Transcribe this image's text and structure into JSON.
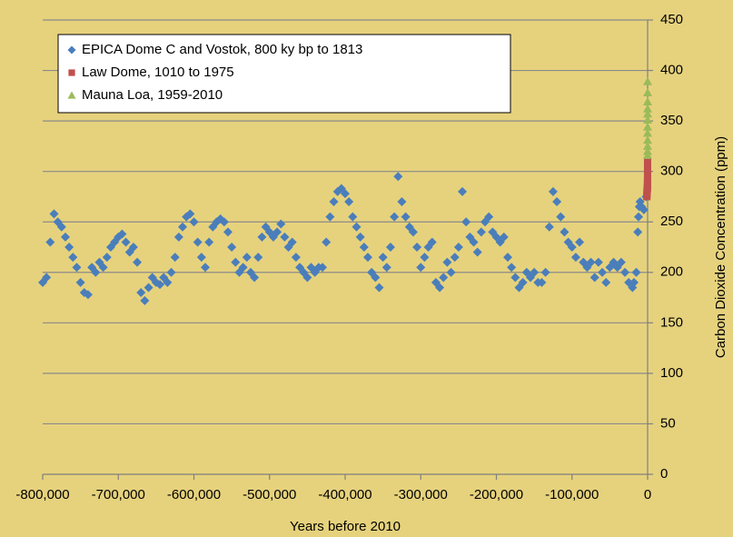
{
  "chart_data": {
    "type": "scatter",
    "x_label": "Years before 2010",
    "y_label": "Carbon Dioxide Concentration (ppm)",
    "xlim": [
      -800000,
      0
    ],
    "xticks": [
      {
        "value": -800000,
        "label": "-800,000"
      },
      {
        "value": -700000,
        "label": "-700,000"
      },
      {
        "value": -600000,
        "label": "-600,000"
      },
      {
        "value": -500000,
        "label": "-500,000"
      },
      {
        "value": -400000,
        "label": "-400,000"
      },
      {
        "value": -300000,
        "label": "-300,000"
      },
      {
        "value": -200000,
        "label": "-200,000"
      },
      {
        "value": -100000,
        "label": "-100,000"
      },
      0
    ],
    "ylim": [
      0,
      450
    ],
    "yticks": [
      0,
      50,
      100,
      150,
      200,
      250,
      300,
      350,
      400,
      450
    ],
    "grid": true,
    "legend": "top-left",
    "series": [
      {
        "name": "EPICA Dome C and Vostok, 800 ky bp to 1813",
        "color": "#4a7ebb",
        "marker": "diamond",
        "x": [
          -800000,
          -795000,
          -790000,
          -785000,
          -780000,
          -775000,
          -770000,
          -765000,
          -760000,
          -755000,
          -750000,
          -745000,
          -740000,
          -735000,
          -730000,
          -725000,
          -720000,
          -715000,
          -710000,
          -705000,
          -700000,
          -695000,
          -690000,
          -685000,
          -680000,
          -675000,
          -670000,
          -665000,
          -660000,
          -655000,
          -650000,
          -645000,
          -640000,
          -635000,
          -630000,
          -625000,
          -620000,
          -615000,
          -610000,
          -605000,
          -600000,
          -595000,
          -590000,
          -585000,
          -580000,
          -575000,
          -570000,
          -565000,
          -560000,
          -555000,
          -550000,
          -545000,
          -540000,
          -535000,
          -530000,
          -525000,
          -520000,
          -515000,
          -510000,
          -505000,
          -500000,
          -495000,
          -490000,
          -485000,
          -480000,
          -475000,
          -470000,
          -465000,
          -460000,
          -455000,
          -450000,
          -445000,
          -440000,
          -435000,
          -430000,
          -425000,
          -420000,
          -415000,
          -410000,
          -405000,
          -400000,
          -395000,
          -390000,
          -385000,
          -380000,
          -375000,
          -370000,
          -365000,
          -360000,
          -355000,
          -350000,
          -345000,
          -340000,
          -335000,
          -330000,
          -325000,
          -320000,
          -315000,
          -310000,
          -305000,
          -300000,
          -295000,
          -290000,
          -285000,
          -280000,
          -275000,
          -270000,
          -265000,
          -260000,
          -255000,
          -250000,
          -245000,
          -240000,
          -235000,
          -230000,
          -225000,
          -220000,
          -215000,
          -210000,
          -205000,
          -200000,
          -195000,
          -190000,
          -185000,
          -180000,
          -175000,
          -170000,
          -165000,
          -160000,
          -155000,
          -150000,
          -145000,
          -140000,
          -135000,
          -130000,
          -125000,
          -120000,
          -115000,
          -110000,
          -105000,
          -100000,
          -95000,
          -90000,
          -85000,
          -80000,
          -75000,
          -70000,
          -65000,
          -60000,
          -55000,
          -50000,
          -45000,
          -40000,
          -35000,
          -30000,
          -25000,
          -20000,
          -18000,
          -15000,
          -13000,
          -12000,
          -11000,
          -10000,
          -8000,
          -5000,
          -2000
        ],
        "values": [
          190,
          195,
          230,
          258,
          250,
          245,
          235,
          225,
          215,
          205,
          190,
          180,
          178,
          205,
          200,
          210,
          205,
          215,
          225,
          230,
          235,
          238,
          230,
          220,
          225,
          210,
          180,
          172,
          185,
          195,
          190,
          188,
          195,
          190,
          200,
          215,
          235,
          245,
          255,
          258,
          250,
          230,
          215,
          205,
          230,
          245,
          250,
          253,
          250,
          240,
          225,
          210,
          200,
          205,
          215,
          200,
          195,
          215,
          235,
          245,
          240,
          235,
          240,
          248,
          235,
          225,
          230,
          215,
          205,
          200,
          195,
          205,
          200,
          205,
          205,
          230,
          255,
          270,
          280,
          283,
          278,
          270,
          255,
          245,
          235,
          225,
          215,
          200,
          195,
          185,
          215,
          205,
          225,
          255,
          295,
          270,
          255,
          245,
          240,
          225,
          205,
          215,
          225,
          230,
          190,
          185,
          195,
          210,
          200,
          215,
          225,
          280,
          250,
          235,
          230,
          220,
          240,
          250,
          255,
          240,
          235,
          230,
          235,
          215,
          205,
          195,
          185,
          190,
          200,
          195,
          200,
          190,
          190,
          200,
          245,
          280,
          270,
          255,
          240,
          230,
          225,
          215,
          230,
          210,
          205,
          210,
          195,
          210,
          200,
          190,
          205,
          210,
          205,
          210,
          200,
          190,
          185,
          190,
          200,
          240,
          255,
          265,
          270,
          265,
          262,
          275
        ]
      },
      {
        "name": "Law Dome, 1010 to 1975",
        "color": "#c0504d",
        "marker": "square",
        "x": [
          -1000,
          -900,
          -800,
          -700,
          -600,
          -500,
          -400,
          -300,
          -200,
          -150,
          -100,
          -80,
          -60,
          -45,
          -35
        ],
        "values": [
          275,
          277,
          279,
          280,
          281,
          282,
          283,
          284,
          286,
          289,
          292,
          296,
          301,
          306,
          310
        ]
      },
      {
        "name": "Mauna Loa, 1959-2010",
        "color": "#9bbb59",
        "marker": "triangle",
        "x": [
          -51,
          -46,
          -41,
          -36,
          -31,
          -26,
          -21,
          -16,
          -11,
          -6,
          -1,
          0
        ],
        "values": [
          316,
          320,
          325,
          331,
          338,
          344,
          351,
          357,
          362,
          369,
          378,
          389
        ]
      }
    ]
  }
}
